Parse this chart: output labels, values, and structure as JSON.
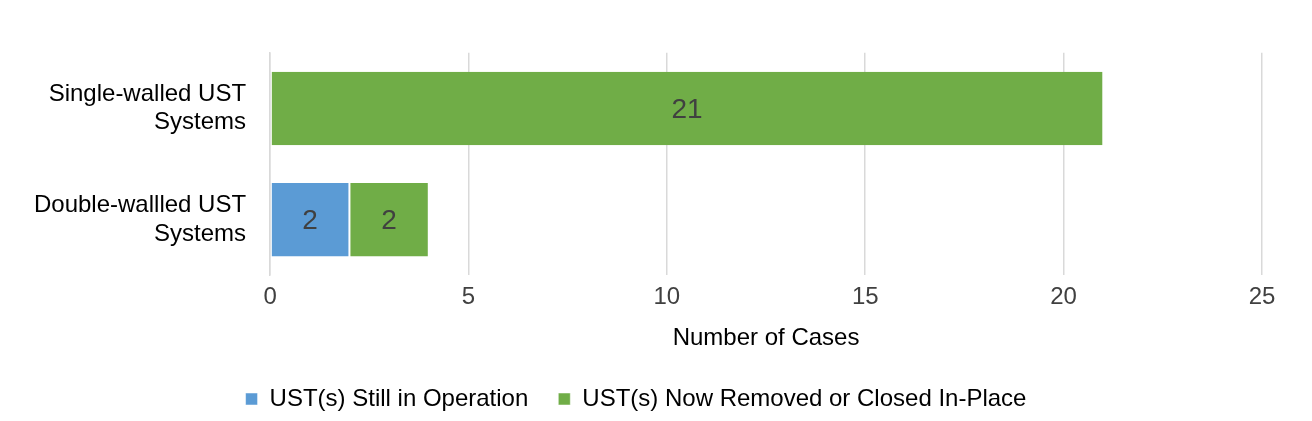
{
  "chart_data": {
    "type": "bar",
    "orientation": "horizontal",
    "stacked": true,
    "categories": [
      "Single-walled UST Systems",
      "Double-wallled UST Systems"
    ],
    "series": [
      {
        "name": "UST(s) Still in Operation",
        "color": "#5b9bd5",
        "values": [
          null,
          2
        ]
      },
      {
        "name": "UST(s) Now Removed or Closed In-Place",
        "color": "#70ad47",
        "values": [
          21,
          2
        ]
      }
    ],
    "xlim": [
      0,
      25
    ],
    "xticks": [
      0,
      5,
      10,
      15,
      20,
      25
    ],
    "xlabel": "Number of Cases",
    "grid": "x",
    "legend": "bottom",
    "data_labels": true
  }
}
